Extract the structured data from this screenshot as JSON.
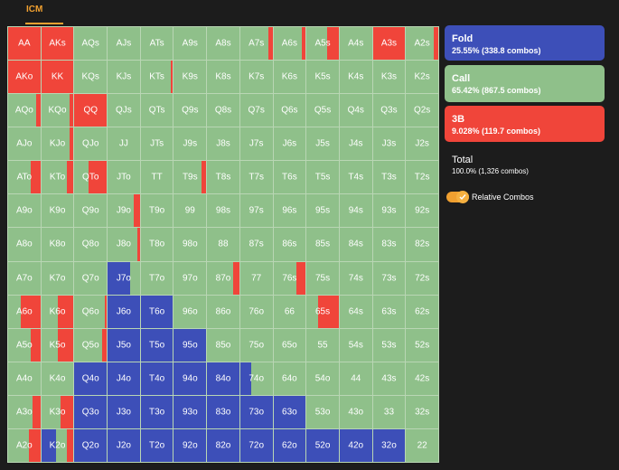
{
  "tab": {
    "label": "ICM"
  },
  "legend": {
    "fold": {
      "title": "Fold",
      "stats": "25.55% (338.8 combos)"
    },
    "call": {
      "title": "Call",
      "stats": "65.42% (867.5 combos)"
    },
    "raise": {
      "title": "3B",
      "stats": "9.028% (119.7 combos)"
    },
    "total": {
      "title": "Total",
      "stats": "100.0% (1,326 combos)"
    }
  },
  "toggle": {
    "label": "Relative Combos",
    "on": true
  },
  "colors": {
    "fold": "#3d4fb8",
    "call": "#8fc08a",
    "raise": "#f0453a",
    "accent": "#f0a030",
    "background": "#1c1c1c"
  },
  "grid": {
    "rows": [
      [
        "AA",
        "AKs",
        "AQs",
        "AJs",
        "ATs",
        "A9s",
        "A8s",
        "A7s",
        "A6s",
        "A5s",
        "A4s",
        "A3s",
        "A2s"
      ],
      [
        "AKo",
        "KK",
        "KQs",
        "KJs",
        "KTs",
        "K9s",
        "K8s",
        "K7s",
        "K6s",
        "K5s",
        "K4s",
        "K3s",
        "K2s"
      ],
      [
        "AQo",
        "KQo",
        "QQ",
        "QJs",
        "QTs",
        "Q9s",
        "Q8s",
        "Q7s",
        "Q6s",
        "Q5s",
        "Q4s",
        "Q3s",
        "Q2s"
      ],
      [
        "AJo",
        "KJo",
        "QJo",
        "JJ",
        "JTs",
        "J9s",
        "J8s",
        "J7s",
        "J6s",
        "J5s",
        "J4s",
        "J3s",
        "J2s"
      ],
      [
        "ATo",
        "KTo",
        "QTo",
        "JTo",
        "TT",
        "T9s",
        "T8s",
        "T7s",
        "T6s",
        "T5s",
        "T4s",
        "T3s",
        "T2s"
      ],
      [
        "A9o",
        "K9o",
        "Q9o",
        "J9o",
        "T9o",
        "99",
        "98s",
        "97s",
        "96s",
        "95s",
        "94s",
        "93s",
        "92s"
      ],
      [
        "A8o",
        "K8o",
        "Q8o",
        "J8o",
        "T8o",
        "98o",
        "88",
        "87s",
        "86s",
        "85s",
        "84s",
        "83s",
        "82s"
      ],
      [
        "A7o",
        "K7o",
        "Q7o",
        "J7o",
        "T7o",
        "97o",
        "87o",
        "77",
        "76s",
        "75s",
        "74s",
        "73s",
        "72s"
      ],
      [
        "A6o",
        "K6o",
        "Q6o",
        "J6o",
        "T6o",
        "96o",
        "86o",
        "76o",
        "66",
        "65s",
        "64s",
        "63s",
        "62s"
      ],
      [
        "A5o",
        "K5o",
        "Q5o",
        "J5o",
        "T5o",
        "95o",
        "85o",
        "75o",
        "65o",
        "55",
        "54s",
        "53s",
        "52s"
      ],
      [
        "A4o",
        "K4o",
        "Q4o",
        "J4o",
        "T4o",
        "94o",
        "84o",
        "74o",
        "64o",
        "54o",
        "44",
        "43s",
        "42s"
      ],
      [
        "A3o",
        "K3o",
        "Q3o",
        "J3o",
        "T3o",
        "93o",
        "83o",
        "73o",
        "63o",
        "53o",
        "43o",
        "33",
        "32s"
      ],
      [
        "A2o",
        "K2o",
        "Q2o",
        "J2o",
        "T2o",
        "92o",
        "82o",
        "72o",
        "62o",
        "52o",
        "42o",
        "32o",
        "22"
      ]
    ],
    "frequencies": {
      "AA": {
        "raise": 1.0
      },
      "AKs": {
        "raise": 1.0
      },
      "A7s": {
        "raise": 0.12
      },
      "A6s": {
        "raise": 0.12
      },
      "A5s": {
        "raise": 0.35
      },
      "A3s": {
        "raise": 1.0
      },
      "A2s": {
        "raise": 0.15
      },
      "AKo": {
        "raise": 1.0
      },
      "KK": {
        "raise": 1.0
      },
      "KTs": {
        "raise": 0.08
      },
      "AQo": {
        "raise": 0.12
      },
      "KQo": {
        "raise": 0.12
      },
      "QQ": {
        "raise": 1.0
      },
      "KJo": {
        "raise": 0.12
      },
      "ATo": {
        "raise": 0.3
      },
      "KTo": {
        "raise": 0.2
      },
      "QTo": {
        "raise": 0.55
      },
      "T9s": {
        "raise": 0.15
      },
      "J9o": {
        "raise": 0.2
      },
      "J8o": {
        "raise": 0.08
      },
      "J7o": {
        "fold": 0.7
      },
      "87o": {
        "raise": 0.2
      },
      "76s": {
        "raise": 0.3
      },
      "A6o": {
        "raise": 0.6
      },
      "K6o": {
        "raise": 0.5
      },
      "Q6o": {
        "raise": 0.06
      },
      "J6o": {
        "fold": 1.0
      },
      "T6o": {
        "fold": 1.0
      },
      "65s": {
        "raise": 0.65
      },
      "A5o": {
        "raise": 0.3
      },
      "K5o": {
        "raise": 0.5
      },
      "Q5o": {
        "raise": 0.15
      },
      "J5o": {
        "fold": 1.0
      },
      "T5o": {
        "fold": 1.0
      },
      "95o": {
        "fold": 1.0
      },
      "Q4o": {
        "fold": 1.0
      },
      "J4o": {
        "fold": 1.0
      },
      "T4o": {
        "fold": 1.0
      },
      "94o": {
        "fold": 1.0
      },
      "84o": {
        "fold": 1.0
      },
      "74o": {
        "fold": 0.35
      },
      "A3o": {
        "raise": 0.25
      },
      "K3o": {
        "raise": 0.4
      },
      "Q3o": {
        "fold": 1.0
      },
      "J3o": {
        "fold": 1.0
      },
      "T3o": {
        "fold": 1.0
      },
      "93o": {
        "fold": 1.0
      },
      "83o": {
        "fold": 1.0
      },
      "73o": {
        "fold": 1.0
      },
      "63o": {
        "fold": 1.0
      },
      "A2o": {
        "raise": 0.35
      },
      "K2o": {
        "fold": 0.45,
        "raise": 0.2
      },
      "Q2o": {
        "fold": 1.0
      },
      "J2o": {
        "fold": 1.0
      },
      "T2o": {
        "fold": 1.0
      },
      "92o": {
        "fold": 1.0
      },
      "82o": {
        "fold": 1.0
      },
      "72o": {
        "fold": 1.0
      },
      "62o": {
        "fold": 1.0
      },
      "52o": {
        "fold": 1.0
      },
      "42o": {
        "fold": 1.0
      },
      "32o": {
        "fold": 1.0
      }
    }
  }
}
